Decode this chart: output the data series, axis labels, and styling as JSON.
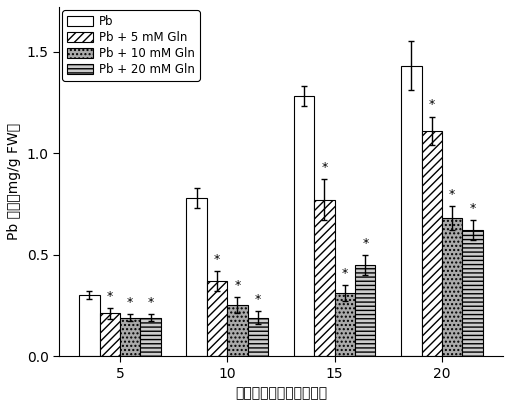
{
  "groups": [
    5,
    10,
    15,
    20
  ],
  "series": {
    "Pb": [
      0.3,
      0.78,
      1.28,
      1.43
    ],
    "Pb + 5 mM Gln": [
      0.21,
      0.37,
      0.77,
      1.11
    ],
    "Pb + 10 mM Gln": [
      0.19,
      0.25,
      0.31,
      0.68
    ],
    "Pb + 20 mM Gln": [
      0.19,
      0.19,
      0.45,
      0.62
    ]
  },
  "errors": {
    "Pb": [
      0.02,
      0.05,
      0.05,
      0.12
    ],
    "Pb + 5 mM Gln": [
      0.025,
      0.05,
      0.1,
      0.07
    ],
    "Pb + 10 mM Gln": [
      0.015,
      0.04,
      0.04,
      0.06
    ],
    "Pb + 20 mM Gln": [
      0.015,
      0.03,
      0.05,
      0.05
    ]
  },
  "star_markers": {
    "Pb": [
      false,
      false,
      false,
      false
    ],
    "Pb + 5 mM Gln": [
      true,
      true,
      true,
      true
    ],
    "Pb + 10 mM Gln": [
      true,
      true,
      true,
      true
    ],
    "Pb + 20 mM Gln": [
      true,
      true,
      true,
      true
    ]
  },
  "bar_width": 0.19,
  "ylim": [
    0.0,
    1.72
  ],
  "yticks": [
    0.0,
    0.5,
    1.0,
    1.5
  ],
  "ylabel_line1": "Pb 含量（mg/g FW）",
  "ylabel_cn": "Pb 含量（mg/g FW）",
  "xlabel_cn": "谷氨酰胺处理时间（天）",
  "legend_labels": [
    "Pb",
    "Pb + 5 mM Gln",
    "Pb + 10 mM Gln",
    "Pb + 20 mM Gln"
  ],
  "figure_color": "#ffffff",
  "hatches": [
    "",
    "////",
    "....",
    "----"
  ],
  "facecolors": [
    "white",
    "white",
    "#aaaaaa",
    "#cccccc"
  ],
  "edgecolors": [
    "black",
    "black",
    "black",
    "black"
  ]
}
